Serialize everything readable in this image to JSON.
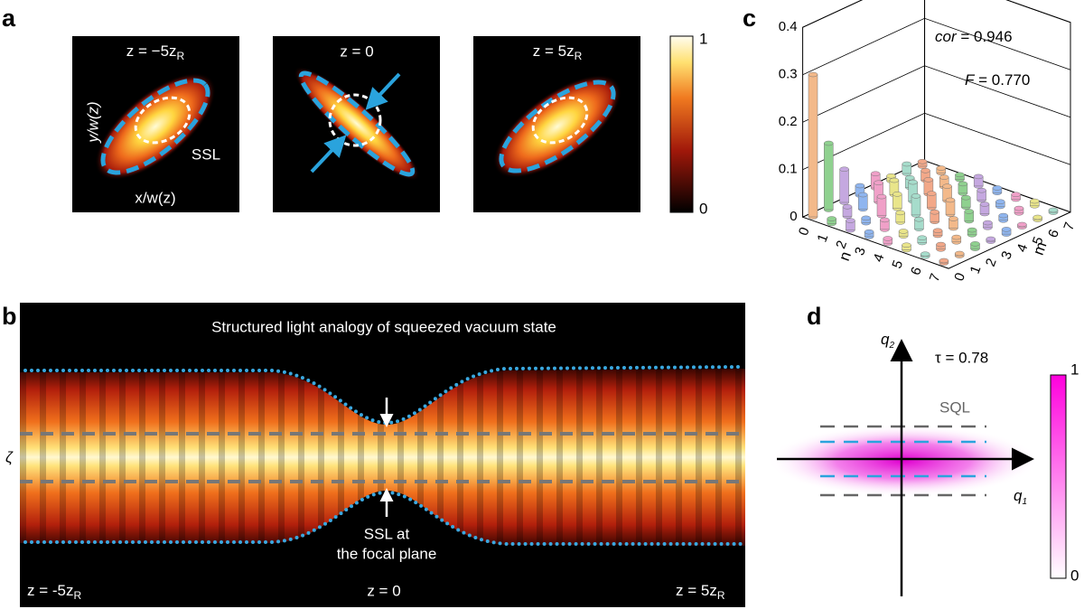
{
  "panels": {
    "a": {
      "label": "a",
      "images": [
        {
          "title": "z = −5z",
          "title_sub": "R"
        },
        {
          "title": "z = 0"
        },
        {
          "title": "z = 5z",
          "title_sub": "R"
        }
      ],
      "y_label": "y/w(z)",
      "x_label": "x/w(z)",
      "annotation": "SSL",
      "colorbar": {
        "max": "1",
        "min": "0"
      }
    },
    "b": {
      "label": "b",
      "title": "Structured light analogy of squeezed vacuum state",
      "side_label": "ζ",
      "annotation": [
        "SSL at",
        "the focal plane"
      ],
      "positions": [
        {
          "text": "z = -5z",
          "sub": "R"
        },
        {
          "text": "z = 0"
        },
        {
          "text": "z = 5z",
          "sub": "R"
        }
      ]
    },
    "c": {
      "label": "c",
      "zticks": [
        0,
        0.1,
        0.2,
        0.3,
        0.4
      ],
      "zlim": [
        0,
        0.4
      ],
      "n_label": "n",
      "m_label": "m",
      "nticks": [
        0,
        1,
        2,
        3,
        4,
        5,
        6,
        7
      ],
      "mticks": [
        0,
        1,
        2,
        3,
        4,
        5,
        6,
        7
      ],
      "cor": {
        "symbol": "cor",
        "text": " = 0.946"
      },
      "fidelity": {
        "symbol": "F",
        "text": " = 0.770"
      },
      "bars": [
        [
          0.3,
          0.14,
          0.07,
          0.02,
          0.03,
          0.01,
          0.02,
          0.01
        ],
        [
          0.01,
          0.02,
          0.03,
          0.04,
          0.03,
          0.02,
          0.02,
          0.01
        ],
        [
          0.02,
          0.01,
          0.04,
          0.03,
          0.04,
          0.03,
          0.02,
          0.01
        ],
        [
          0.01,
          0.02,
          0.02,
          0.04,
          0.03,
          0.03,
          0.02,
          0.02
        ],
        [
          0.01,
          0.01,
          0.02,
          0.02,
          0.03,
          0.02,
          0.02,
          0.01
        ],
        [
          0.01,
          0.01,
          0.01,
          0.02,
          0.02,
          0.02,
          0.01,
          0.01
        ],
        [
          0.005,
          0.01,
          0.01,
          0.01,
          0.01,
          0.01,
          0.01,
          0.01
        ],
        [
          0.005,
          0.005,
          0.01,
          0.005,
          0.01,
          0.005,
          0.005,
          0.005
        ]
      ]
    },
    "d": {
      "label": "d",
      "q2": "q",
      "q2_sub": "2",
      "q1": "q",
      "q1_sub": "1",
      "tau": "τ = 0.78",
      "sql": "SQL",
      "colorbar": {
        "max": "1",
        "min": "0"
      }
    }
  }
}
